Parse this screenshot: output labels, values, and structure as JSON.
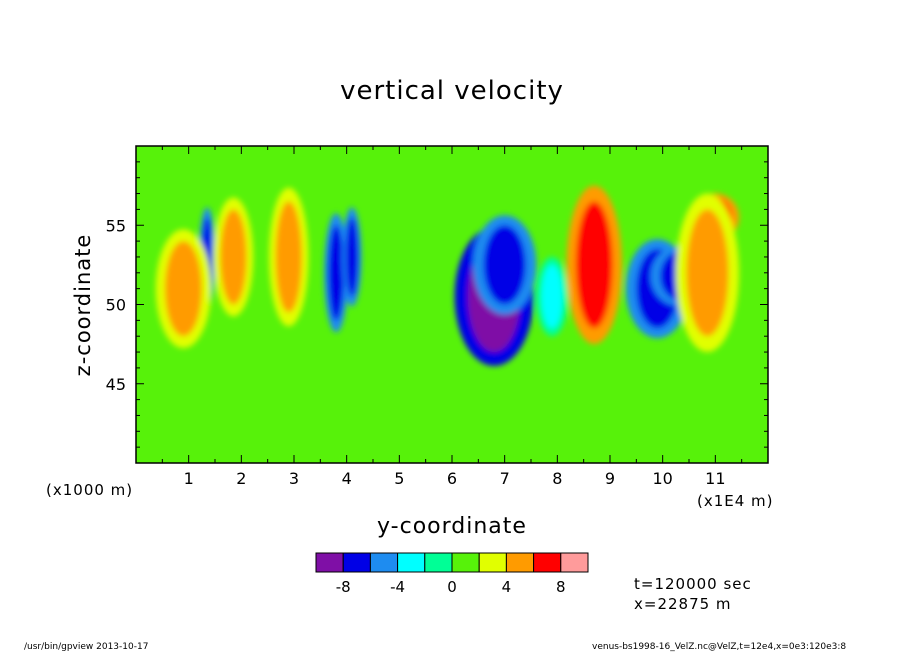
{
  "chart_data": {
    "type": "heatmap",
    "title": "vertical velocity",
    "xlabel": "y-coordinate",
    "ylabel": "z-coordinate",
    "x_unit_note": "(x1E4 m)",
    "y_unit_note": "(x1000 m)",
    "xlim": [
      0,
      12
    ],
    "ylim": [
      40,
      60
    ],
    "x_ticks": [
      1,
      2,
      3,
      4,
      5,
      6,
      7,
      8,
      9,
      10,
      11
    ],
    "y_ticks": [
      45,
      50,
      55
    ],
    "colorbar": {
      "levels": [
        -10,
        -8,
        -6,
        -4,
        -2,
        0,
        2,
        4,
        6,
        8,
        10
      ],
      "tick_labels": [
        "-8",
        "-4",
        "0",
        "4",
        "8"
      ],
      "tick_values": [
        -8,
        -4,
        0,
        4,
        8
      ],
      "colors": [
        "#7f0fa6",
        "#0000e6",
        "#1e8cf0",
        "#00ffff",
        "#00ff96",
        "#57f20a",
        "#e1ff00",
        "#ff9b00",
        "#ff0000",
        "#ff9b9b"
      ]
    },
    "background_color": "#57f20a",
    "features": [
      {
        "y": 6.8,
        "z": 50.5,
        "value": -10,
        "ry": 0.5,
        "rz": 3.5
      },
      {
        "y": 7.0,
        "z": 52.5,
        "value": -8,
        "ry": 0.4,
        "rz": 2.5
      },
      {
        "y": 3.8,
        "z": 52.0,
        "value": -8,
        "ry": 0.15,
        "rz": 3.0
      },
      {
        "y": 4.1,
        "z": 53.0,
        "value": -8,
        "ry": 0.12,
        "rz": 2.5
      },
      {
        "y": 1.35,
        "z": 53.0,
        "value": -8,
        "ry": 0.1,
        "rz": 2.5
      },
      {
        "y": 9.9,
        "z": 51.0,
        "value": -8,
        "ry": 0.4,
        "rz": 2.5
      },
      {
        "y": 10.3,
        "z": 51.8,
        "value": -8,
        "ry": 0.35,
        "rz": 1.5
      },
      {
        "y": 8.7,
        "z": 52.5,
        "value": 8,
        "ry": 0.15,
        "rz": 2.0
      },
      {
        "y": 8.7,
        "z": 52.5,
        "value": 6,
        "ry": 0.35,
        "rz": 4.0
      },
      {
        "y": 11.0,
        "z": 55.5,
        "value": 6,
        "ry": 0.3,
        "rz": 1.2
      },
      {
        "y": 10.85,
        "z": 52.0,
        "value": 4,
        "ry": 0.4,
        "rz": 4.0
      },
      {
        "y": 1.0,
        "z": 50.5,
        "value": 6,
        "ry": 0.15,
        "rz": 1.5
      },
      {
        "y": 0.9,
        "z": 51.0,
        "value": 4,
        "ry": 0.35,
        "rz": 3.0
      },
      {
        "y": 1.85,
        "z": 53.0,
        "value": 4,
        "ry": 0.25,
        "rz": 3.0
      },
      {
        "y": 2.9,
        "z": 53.0,
        "value": 4,
        "ry": 0.25,
        "rz": 3.5
      },
      {
        "y": 7.9,
        "z": 50.5,
        "value": -4,
        "ry": 0.2,
        "rz": 2.0
      }
    ]
  },
  "run_info": {
    "time": "t=120000 sec",
    "position": "x=22875 m"
  },
  "footer": {
    "left": "/usr/bin/gpview  2013-10-17",
    "right": "venus-bs1998-16_VelZ.nc@VelZ,t=12e4,x=0e3:120e3:8"
  }
}
